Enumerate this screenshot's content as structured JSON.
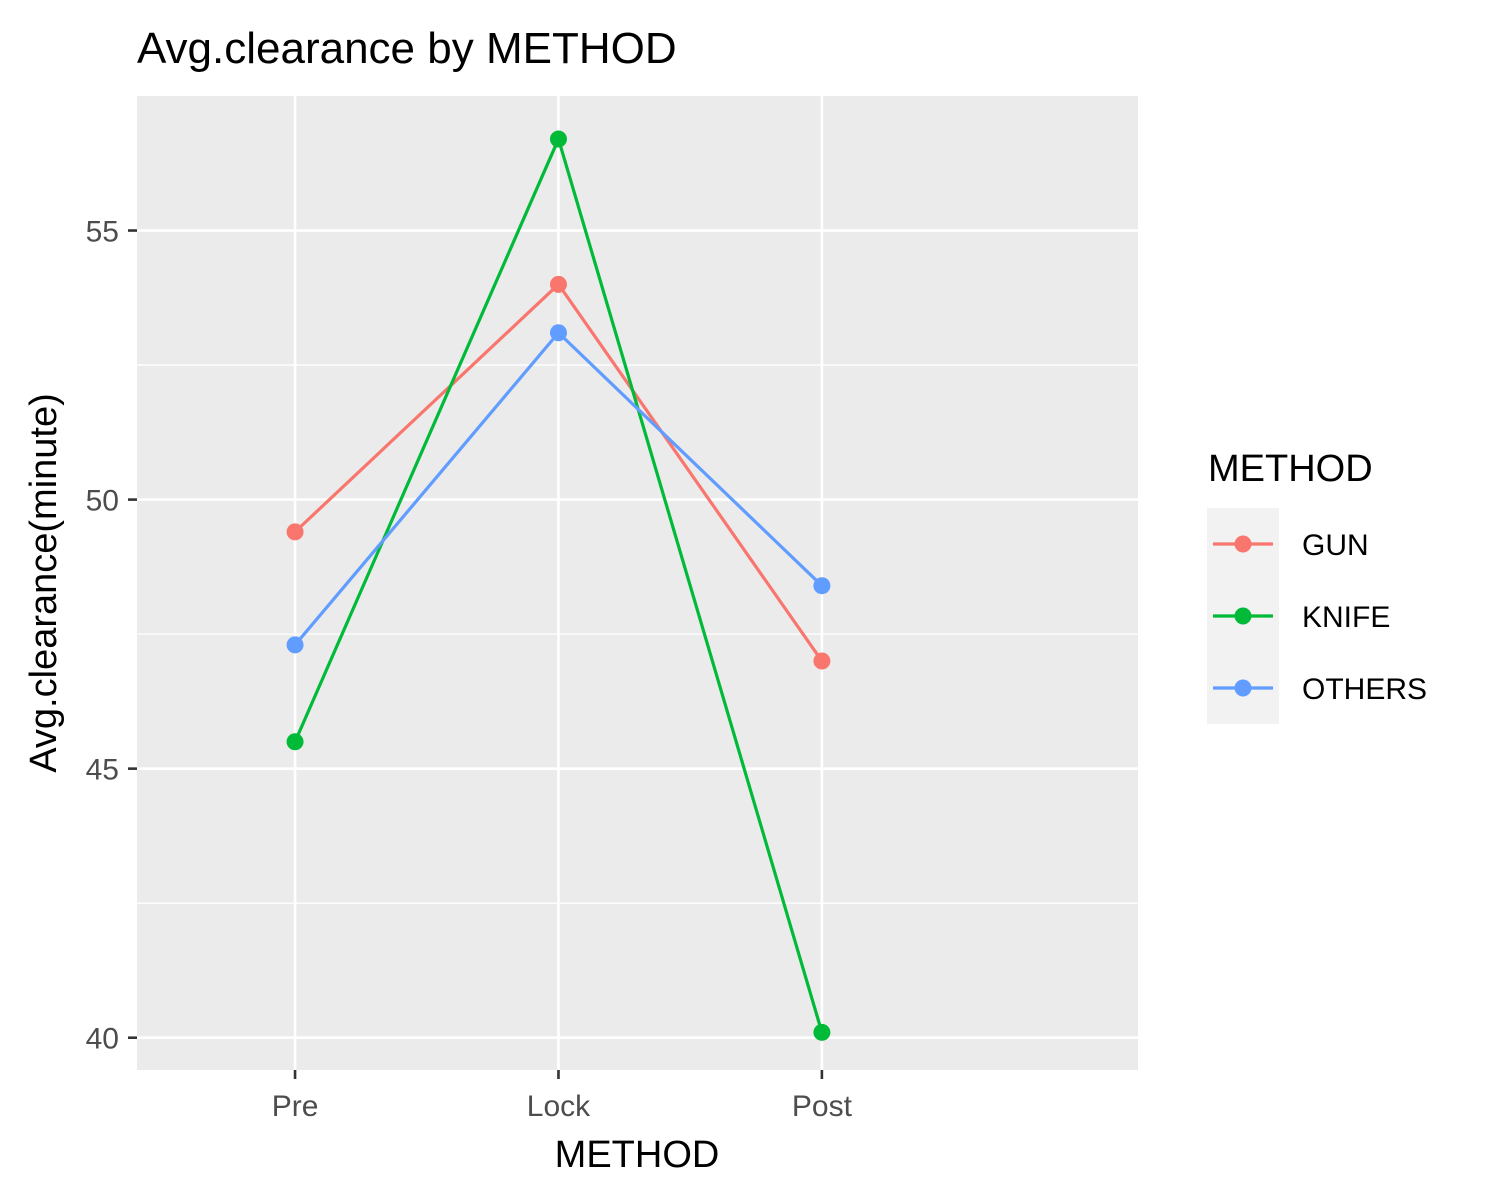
{
  "chart_data": {
    "type": "line",
    "title": "Avg.clearance by METHOD",
    "xlabel": "METHOD",
    "ylabel": "Avg.clearance(minute)",
    "categories": [
      "Pre",
      "Lock",
      "Post"
    ],
    "ylim": [
      39.4,
      57.5
    ],
    "yticks": [
      40,
      45,
      50,
      55
    ],
    "grid": true,
    "legend": {
      "title": "METHOD",
      "position": "right"
    },
    "series": [
      {
        "name": "GUN",
        "color": "#F8766D",
        "values": [
          49.4,
          54.0,
          47.0
        ]
      },
      {
        "name": "KNIFE",
        "color": "#00BA38",
        "values": [
          45.5,
          56.7,
          40.1
        ]
      },
      {
        "name": "OTHERS",
        "color": "#619CFF",
        "values": [
          47.3,
          53.1,
          48.4
        ]
      }
    ]
  }
}
